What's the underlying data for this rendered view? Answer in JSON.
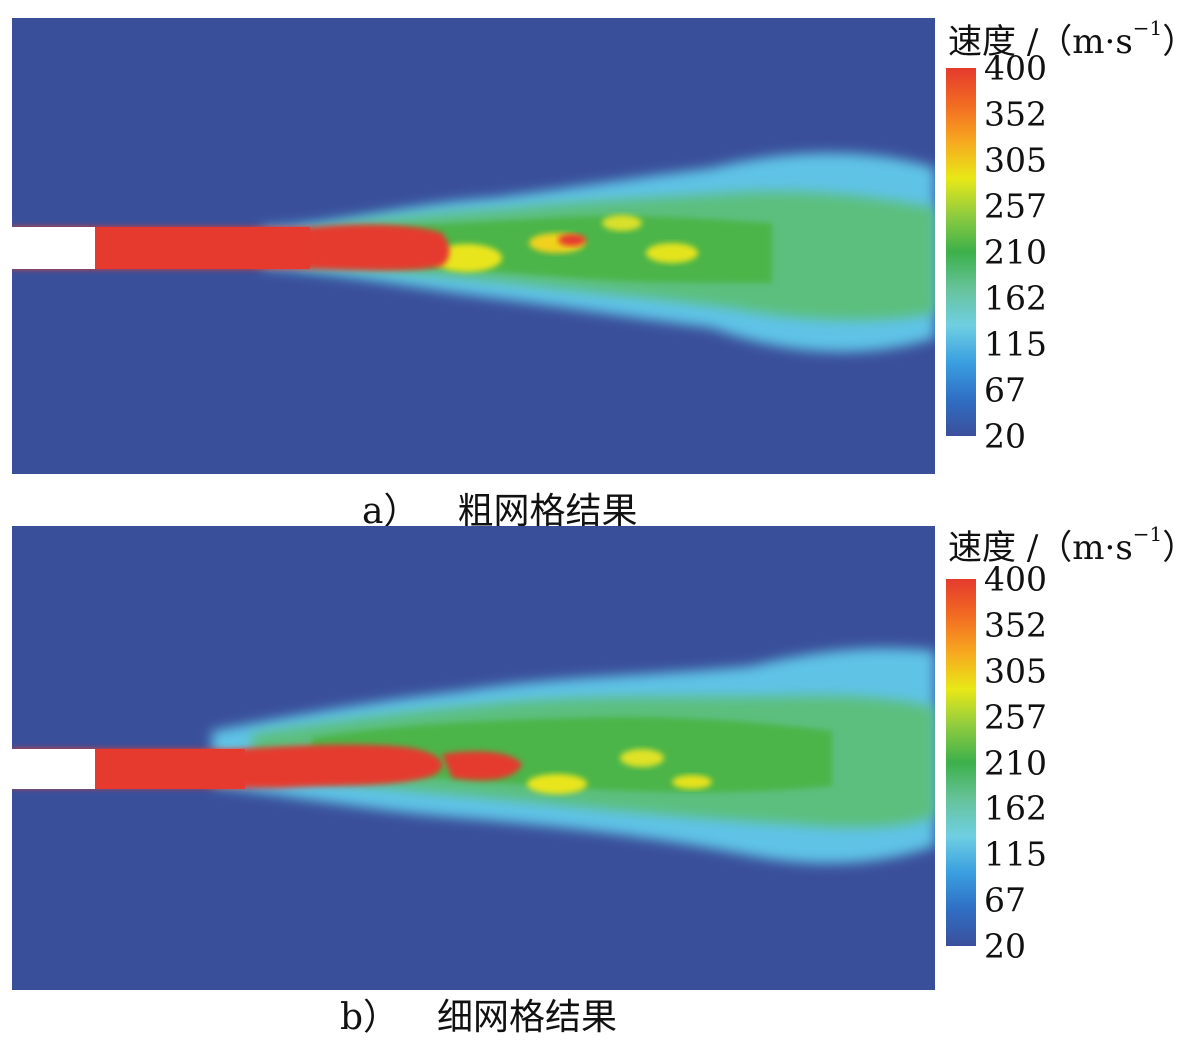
{
  "colorbar": {
    "title": "速度",
    "unit_prefix": "/（m·s",
    "unit_exp": "−1",
    "unit_suffix": "）",
    "ticks": [
      "400",
      "352",
      "305",
      "257",
      "210",
      "162",
      "115",
      "67",
      "20"
    ],
    "colors": [
      "#3b4f9b",
      "#2f6fc4",
      "#3a9fe0",
      "#6fcfe2",
      "#66c39a",
      "#3cb04a",
      "#8fcc3f",
      "#e8e817",
      "#f7a81f",
      "#f26b22",
      "#e53a2d"
    ]
  },
  "panels": [
    {
      "label": "a）",
      "caption": "粗网格结果"
    },
    {
      "label": "b）",
      "caption": "细网格结果"
    }
  ]
}
